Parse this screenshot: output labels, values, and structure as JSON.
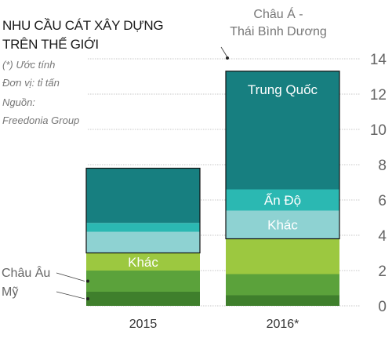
{
  "header": {
    "title_line1": "NHU CẦU CÁT XÂY DỰNG",
    "title_line2": "TRÊN THẾ GIỚI",
    "note_estimate": "(*) Ước tính",
    "note_unit": "Đơn vị: tỉ tấn",
    "source_label": "Nguồn:",
    "source_name": "Freedonia Group"
  },
  "chart_data": {
    "type": "bar",
    "stacked": true,
    "categories": [
      "2015",
      "2016*"
    ],
    "ylim": [
      0,
      14
    ],
    "yticks": [
      0,
      2,
      4,
      6,
      8,
      10,
      12,
      14
    ],
    "grid": true,
    "series": [
      {
        "name": "Mỹ",
        "group": "",
        "values": [
          0.8,
          0.6
        ],
        "color": "#3f7f2c"
      },
      {
        "name": "Châu Âu",
        "group": "",
        "values": [
          1.2,
          1.2
        ],
        "color": "#5ba23b"
      },
      {
        "name": "Khác",
        "group": "",
        "values": [
          1.0,
          2.0
        ],
        "color": "#9cc840"
      },
      {
        "name": "",
        "group": "Châu Á - Thái Bình Dương",
        "values": [
          1.2,
          1.6
        ],
        "color": "#8ed2d2"
      },
      {
        "name": "Ấn Độ",
        "group": "Châu Á - Thái Bình Dương",
        "values": [
          0.5,
          1.2
        ],
        "color": "#2bb8b2"
      },
      {
        "name": "Trung Quốc",
        "group": "Châu Á - Thái Bình Dương",
        "values": [
          3.1,
          6.7
        ],
        "color": "#177f80"
      }
    ],
    "segment_labels": [
      {
        "category": "2015",
        "series": "Khác",
        "text": "Khác"
      },
      {
        "category": "2016*",
        "series": "Trung Quốc",
        "text": "Trung Quốc"
      },
      {
        "category": "2016*",
        "series": "Ấn Độ",
        "text": "Ấn Độ"
      },
      {
        "category": "2016*",
        "series": "",
        "text": "Khác"
      }
    ],
    "side_labels": [
      {
        "text": "Châu Âu",
        "series": "Châu Âu"
      },
      {
        "text": "Mỹ",
        "series": "Mỹ"
      }
    ],
    "region_label": [
      "Châu Á -",
      "Thái Bình Dương"
    ]
  }
}
